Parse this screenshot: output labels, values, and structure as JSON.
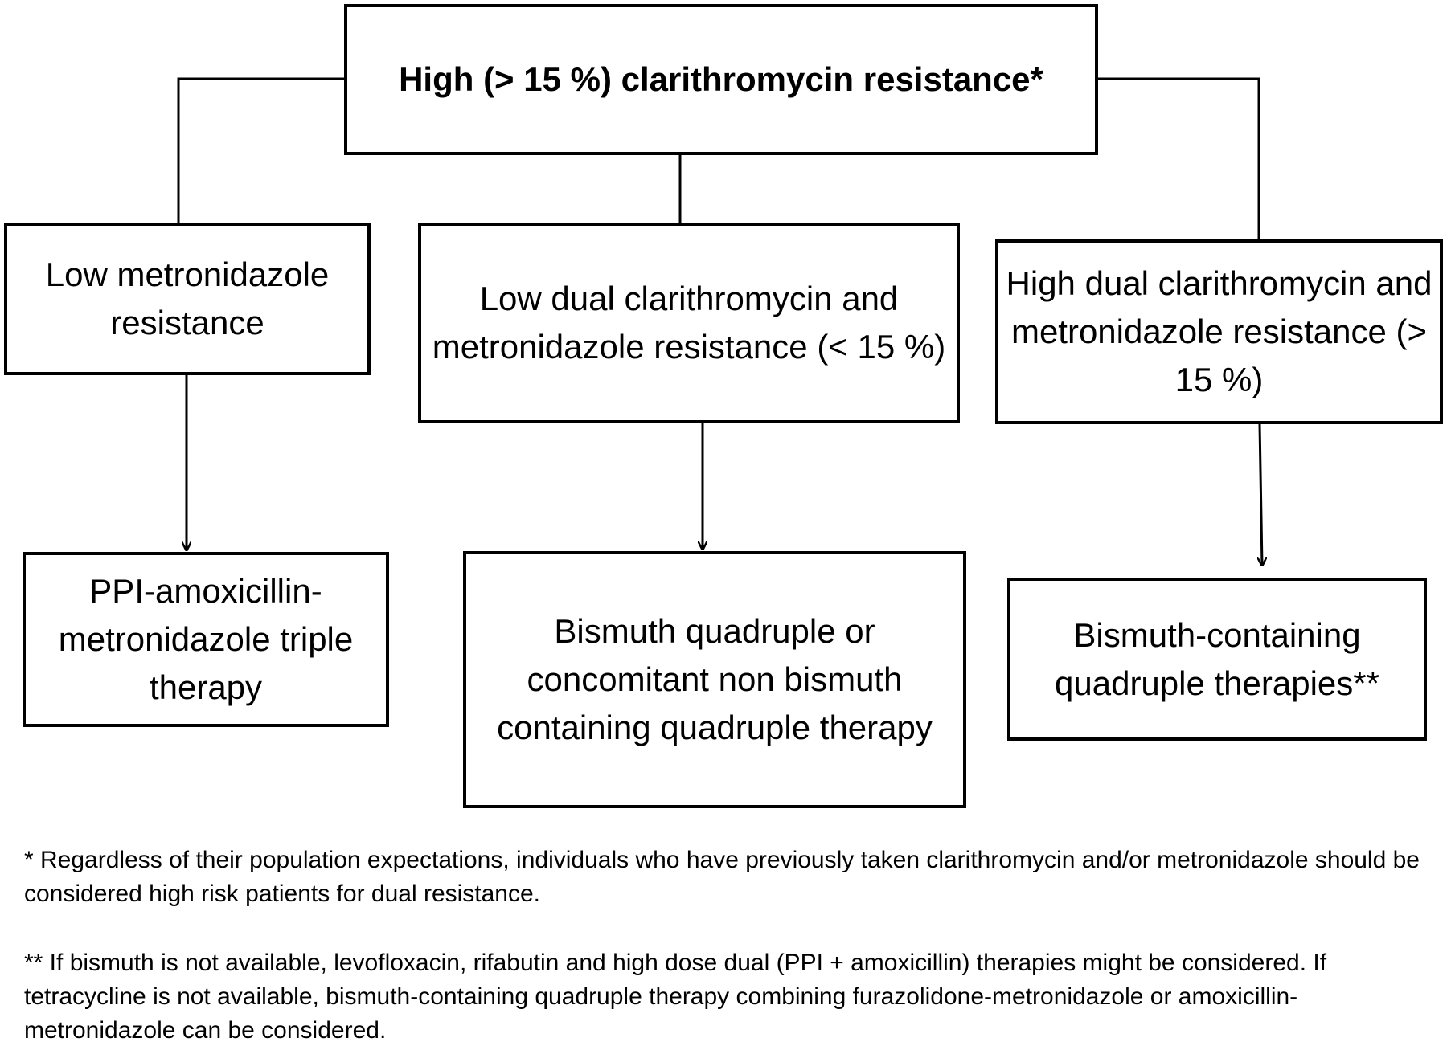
{
  "root": {
    "label": "High (> 15 %) clarithromycin  resistance*"
  },
  "branches": [
    {
      "label": "Low metronidazole resistance"
    },
    {
      "label": "Low dual clarithromycin and metronidazole resistance (< 15 %)"
    },
    {
      "label": "High dual clarithromycin and metronidazole resistance (> 15 %)"
    }
  ],
  "therapies": [
    {
      "label": "PPI-amoxicillin-metronidazole triple therapy"
    },
    {
      "label": "Bismuth quadruple or concomitant non bismuth containing quadruple therapy"
    },
    {
      "label": "Bismuth-containing quadruple therapies**"
    }
  ],
  "footnotes": [
    {
      "text": "* Regardless of their population expectations, individuals who have previously taken clarithromycin and/or metronidazole should be considered high risk patients for dual resistance."
    },
    {
      "text": "** If bismuth is not available, levofloxacin, rifabutin and high dose dual (PPI + amoxicillin) therapies might be considered. If tetracycline is not available, bismuth-containing quadruple therapy combining furazolidone-metronidazole or amoxicillin-metronidazole can be considered."
    }
  ]
}
